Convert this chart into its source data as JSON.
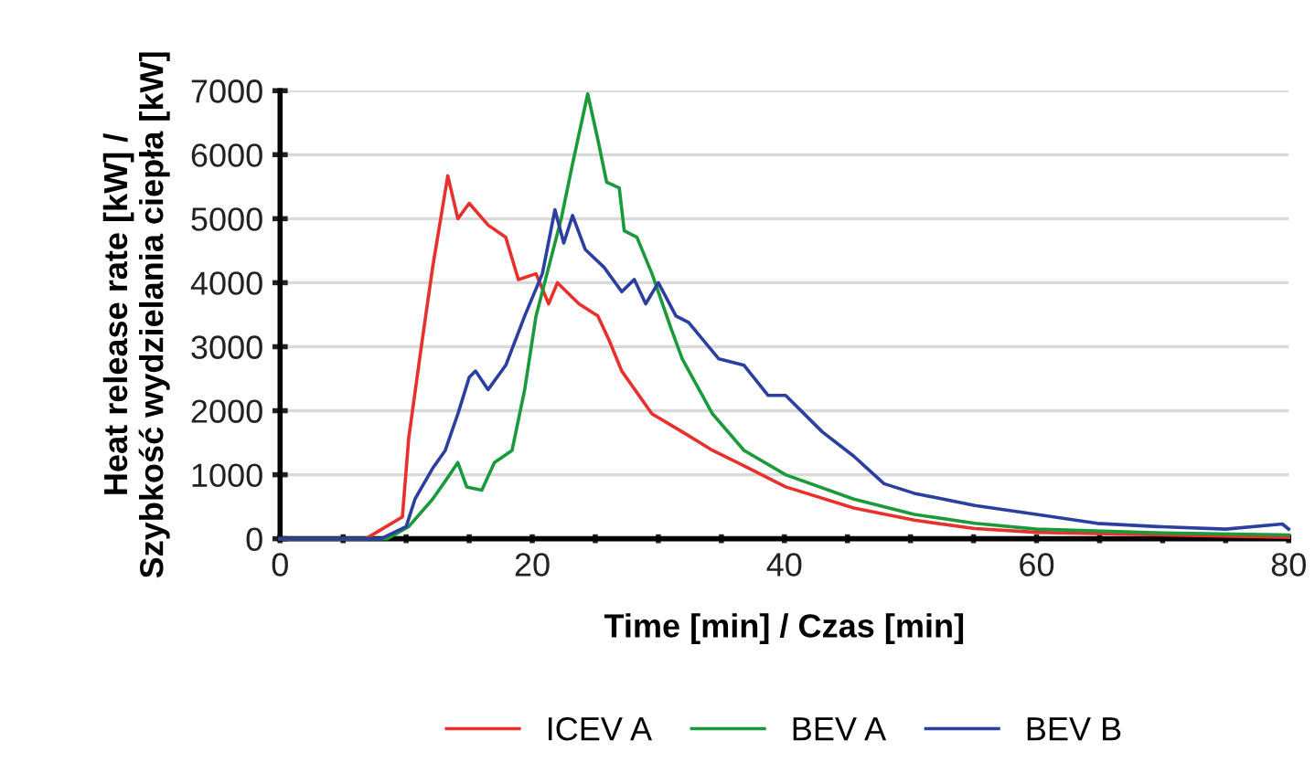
{
  "chart_data": {
    "type": "line",
    "xlabel": "Time [min] / Czas [min]",
    "ylabel": "Heat release rate [kW] /\nSzybkość wydzielania ciepła [kW]",
    "xlim": [
      0,
      80
    ],
    "xticks": [
      0,
      {
        "value": 5,
        "label": null
      },
      {
        "value": 10,
        "label": null
      },
      {
        "value": 15,
        "label": null
      },
      20,
      {
        "value": 25,
        "label": null
      },
      {
        "value": 30,
        "label": null
      },
      {
        "value": 35,
        "label": null
      },
      40,
      {
        "value": 45,
        "label": null
      },
      {
        "value": 50,
        "label": null
      },
      {
        "value": 55,
        "label": null
      },
      60,
      {
        "value": 65,
        "label": null
      },
      {
        "value": 70,
        "label": null
      },
      {
        "value": 75,
        "label": null
      },
      80
    ],
    "ylim": [
      0,
      7000
    ],
    "yticks": [
      0,
      1000,
      2000,
      3000,
      4000,
      5000,
      6000,
      7000
    ],
    "grid": "y",
    "legend": "bottom",
    "marker": "none",
    "line_style": "solid",
    "series": [
      {
        "name": "ICEV A",
        "color": "#e8302c",
        "x": [
          0,
          6.8,
          9.7,
          10.2,
          11.2,
          12.1,
          13.3,
          14.1,
          15.0,
          16.5,
          17.9,
          18.9,
          20.3,
          21.3,
          22.0,
          23.7,
          25.2,
          26.1,
          27.1,
          29.5,
          31.9,
          34.3,
          36.8,
          40.1,
          45.5,
          50.3,
          55.1,
          60,
          70,
          80
        ],
        "values": [
          0,
          0,
          340,
          1570,
          3000,
          4240,
          5670,
          5000,
          5240,
          4900,
          4710,
          4050,
          4140,
          3670,
          4000,
          3670,
          3480,
          3100,
          2620,
          1950,
          1670,
          1380,
          1140,
          810,
          480,
          290,
          160,
          100,
          60,
          20
        ]
      },
      {
        "name": "BEV A",
        "color": "#1a9a3a",
        "x": [
          0,
          8.5,
          10.2,
          12.1,
          13.1,
          14.1,
          14.8,
          16.0,
          17.0,
          18.4,
          19.4,
          20.3,
          21.3,
          22.3,
          23.2,
          24.4,
          25.2,
          25.9,
          26.9,
          27.3,
          28.3,
          29.5,
          31.0,
          31.9,
          34.3,
          36.8,
          40.1,
          45.5,
          50.3,
          55.1,
          60,
          70,
          80
        ],
        "values": [
          0,
          0,
          190,
          620,
          900,
          1190,
          810,
          760,
          1190,
          1380,
          2330,
          3480,
          4240,
          5000,
          5860,
          6950,
          6240,
          5570,
          5480,
          4810,
          4710,
          4140,
          3290,
          2810,
          1950,
          1380,
          1000,
          620,
          380,
          240,
          150,
          90,
          60
        ]
      },
      {
        "name": "BEV B",
        "color": "#2a3fa0",
        "x": [
          0,
          8.0,
          10.0,
          10.7,
          12.1,
          13.1,
          14.1,
          15.0,
          15.5,
          16.5,
          17.9,
          19.4,
          20.8,
          21.8,
          22.5,
          23.2,
          24.2,
          25.7,
          27.1,
          28.1,
          29.0,
          30.0,
          31.4,
          32.4,
          34.8,
          36.8,
          38.7,
          40.1,
          43.0,
          45.5,
          47.9,
          50.3,
          55.1,
          60.0,
          64.8,
          69.6,
          75,
          79.5,
          80
        ],
        "values": [
          0,
          0,
          190,
          620,
          1100,
          1380,
          1950,
          2520,
          2620,
          2330,
          2710,
          3480,
          4140,
          5140,
          4620,
          5050,
          4520,
          4240,
          3860,
          4050,
          3670,
          4000,
          3480,
          3380,
          2810,
          2710,
          2240,
          2240,
          1670,
          1290,
          860,
          710,
          520,
          380,
          240,
          190,
          150,
          230,
          150
        ]
      }
    ]
  }
}
